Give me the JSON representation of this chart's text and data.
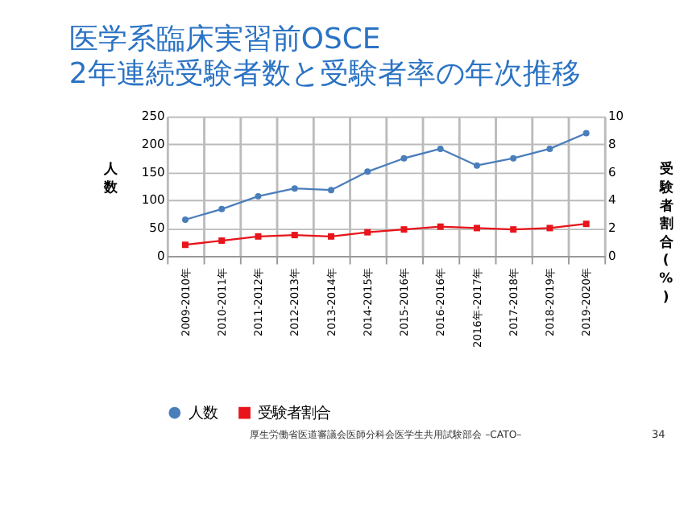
{
  "chart_data": {
    "type": "line",
    "title": "医学系臨床実習前OSCE\n2年連続受験者数と受験者率の年次推移",
    "categories": [
      "2009-2010年",
      "2010-2011年",
      "2011-2012年",
      "2012-2013年",
      "2013-2014年",
      "2014-2015年",
      "2015-2016年",
      "2016-2016年",
      "2016年-2017年",
      "2017-2018年",
      "2018-2019年",
      "2019-2020年"
    ],
    "ylabel": "人数",
    "y2label": "受験者割合(%)",
    "ylim": [
      0,
      250
    ],
    "yticks": [
      0,
      50,
      100,
      150,
      200,
      250
    ],
    "y2lim": [
      0,
      10
    ],
    "y2ticks": [
      0,
      2,
      4,
      6,
      8,
      10
    ],
    "series": [
      {
        "name": "人数",
        "color": "#4a7ebb",
        "marker": "circle",
        "values": [
          65,
          84,
          107,
          121,
          118,
          151,
          175,
          192,
          162,
          175,
          192,
          220
        ]
      },
      {
        "name": "受験者割合",
        "color": "#e8141b",
        "marker": "square",
        "axis": "y2",
        "values": [
          0.8,
          1.1,
          1.4,
          1.5,
          1.4,
          1.7,
          1.9,
          2.1,
          2.0,
          1.9,
          2.0,
          2.3
        ]
      }
    ],
    "grid": true,
    "legend": "bottom",
    "annotations": [
      "厚生労働省医道審議会医師分科会医学生共用試験部会 –CATO–",
      "34"
    ]
  }
}
